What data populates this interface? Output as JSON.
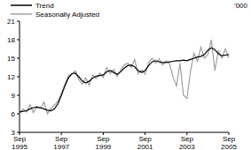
{
  "chart_data": {
    "type": "line",
    "y_label": "'000",
    "categories": [
      "Sep 1995",
      null,
      null,
      null,
      null,
      null,
      null,
      null,
      null,
      null,
      null,
      null,
      "Sep 1997",
      null,
      null,
      null,
      null,
      null,
      null,
      null,
      null,
      null,
      null,
      null,
      "Sep 1999",
      null,
      null,
      null,
      null,
      null,
      null,
      null,
      null,
      null,
      null,
      null,
      "Sep 2001",
      null,
      null,
      null,
      null,
      null,
      null,
      null,
      null,
      null,
      null,
      null,
      "Sep 2003",
      null,
      null,
      null,
      null,
      null,
      null,
      null,
      null,
      null,
      null,
      null,
      "Sep 2005"
    ],
    "series": [
      {
        "name": "Trend",
        "color": "#000000",
        "line_style": "solid",
        "values": [
          6.3,
          6.4,
          6.5,
          6.8,
          7.0,
          7.1,
          7.0,
          6.8,
          6.6,
          6.5,
          6.8,
          7.6,
          9.0,
          10.5,
          11.8,
          12.5,
          12.6,
          12.0,
          11.3,
          11.0,
          11.3,
          11.8,
          12.1,
          12.2,
          12.3,
          12.8,
          13.0,
          12.7,
          12.4,
          12.8,
          13.4,
          13.8,
          13.9,
          13.6,
          13.0,
          12.7,
          13.0,
          13.8,
          14.4,
          14.6,
          14.4,
          14.3,
          14.3,
          14.4,
          14.5,
          14.6,
          14.6,
          14.7,
          14.6,
          14.8,
          15.0,
          15.2,
          15.3,
          15.6,
          16.3,
          16.7,
          16.4,
          15.7,
          15.4,
          15.5,
          15.6
        ]
      },
      {
        "name": "Seasonally Adjusted",
        "color": "#a0a0a0",
        "line_style": "solid",
        "values": [
          6.0,
          6.8,
          6.3,
          7.5,
          6.2,
          7.2,
          6.8,
          7.9,
          6.0,
          6.9,
          7.4,
          8.0,
          9.3,
          10.8,
          12.2,
          12.4,
          13.0,
          11.5,
          10.8,
          11.8,
          10.6,
          12.3,
          11.7,
          12.6,
          11.9,
          13.5,
          12.5,
          13.2,
          12.0,
          13.1,
          13.9,
          14.2,
          13.5,
          14.8,
          12.5,
          13.1,
          12.4,
          14.3,
          15.0,
          14.2,
          14.9,
          13.9,
          14.6,
          14.1,
          12.0,
          10.5,
          14.2,
          9.0,
          8.5,
          12.8,
          15.8,
          14.5,
          16.8,
          15.0,
          15.6,
          18.0,
          13.0,
          16.2,
          15.0,
          16.5,
          15.0
        ]
      }
    ],
    "ylim": [
      3,
      21
    ],
    "yticks": [
      3,
      6,
      9,
      12,
      15,
      18,
      21
    ],
    "grid": false,
    "legend": "upper left"
  }
}
